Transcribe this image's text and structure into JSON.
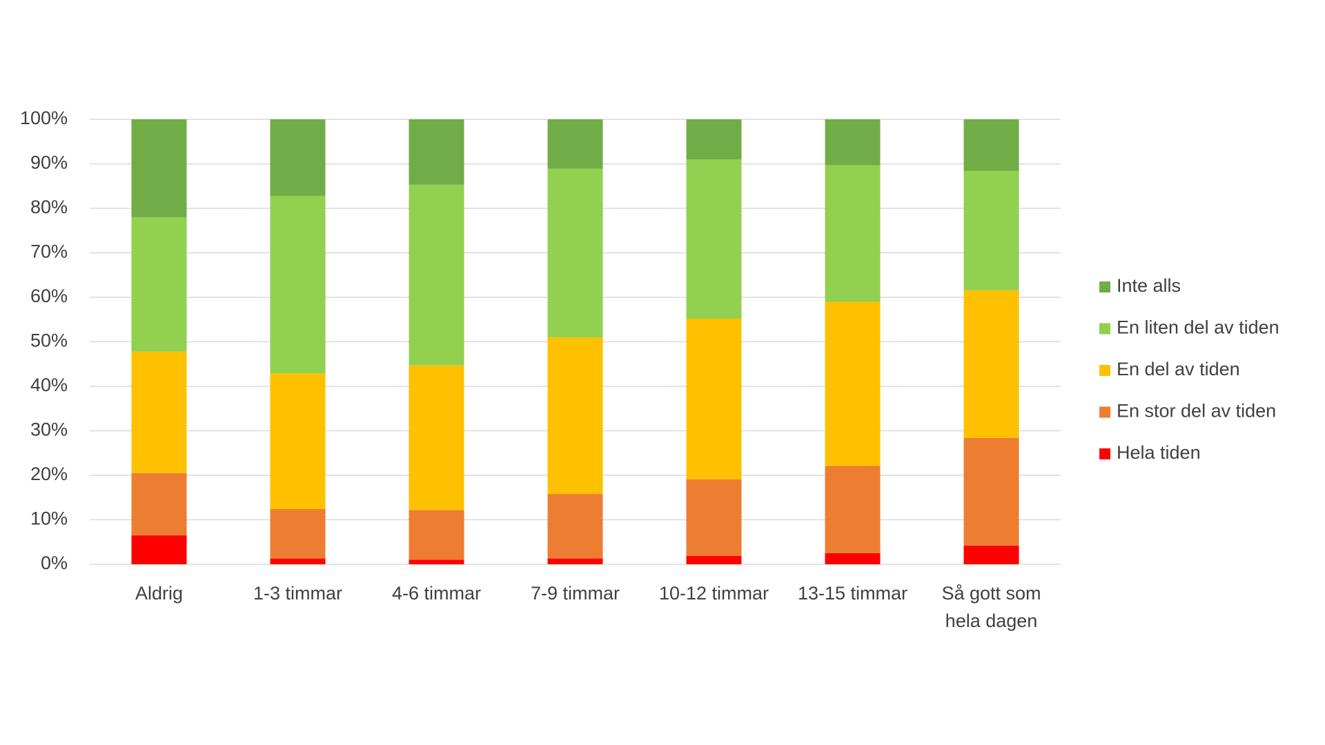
{
  "chart_data": {
    "type": "stacked_bar",
    "categories": [
      "Aldrig",
      "1-3 timmar",
      "4-6 timmar",
      "7-9 timmar",
      "10-12 timmar",
      "13-15 timmar",
      "Så gott som hela dagen"
    ],
    "series": [
      {
        "name": "Hela tiden",
        "color": "#ff0000",
        "values": [
          6.5,
          1.3,
          1.0,
          1.3,
          1.9,
          2.5,
          4.2
        ]
      },
      {
        "name": "En stor del av tiden",
        "color": "#ed7d31",
        "values": [
          14.0,
          11.1,
          11.2,
          14.5,
          17.2,
          19.6,
          24.2
        ]
      },
      {
        "name": "En del av tiden",
        "color": "#ffc000",
        "values": [
          27.3,
          30.5,
          32.5,
          35.2,
          36.1,
          36.9,
          33.2
        ]
      },
      {
        "name": "En liten del av tiden",
        "color": "#92d050",
        "values": [
          30.2,
          39.9,
          40.6,
          37.9,
          35.8,
          30.7,
          26.8
        ]
      },
      {
        "name": "Inte alls",
        "color": "#70ad47",
        "values": [
          22.0,
          17.2,
          14.7,
          11.1,
          9.0,
          10.3,
          11.6
        ]
      }
    ],
    "ylim": [
      0,
      100
    ],
    "yticks": [
      {
        "value": 0,
        "label": "0%"
      },
      {
        "value": 10,
        "label": "10%"
      },
      {
        "value": 20,
        "label": "20%"
      },
      {
        "value": 30,
        "label": "30%"
      },
      {
        "value": 40,
        "label": "40%"
      },
      {
        "value": 50,
        "label": "50%"
      },
      {
        "value": 60,
        "label": "60%"
      },
      {
        "value": 70,
        "label": "70%"
      },
      {
        "value": 80,
        "label": "80%"
      },
      {
        "value": 90,
        "label": "90%"
      },
      {
        "value": 100,
        "label": "100%"
      }
    ],
    "grid": true,
    "legend_position": "right"
  }
}
